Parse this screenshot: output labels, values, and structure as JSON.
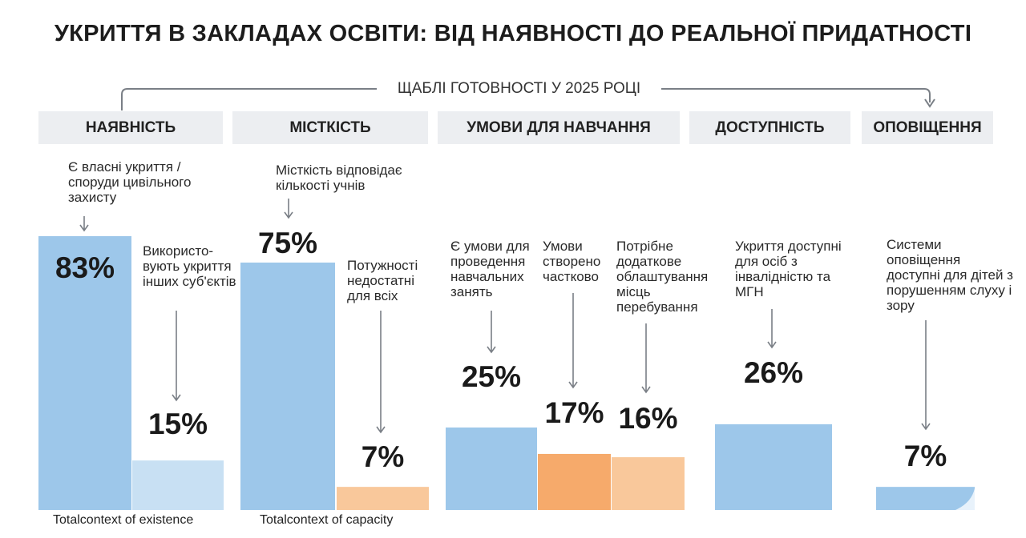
{
  "title": "УКРИТТЯ В ЗАКЛАДАХ ОСВІТИ: ВІД НАЯВНОСТІ ДО РЕАЛЬНОЇ ПРИДАТНОСТІ",
  "subtitle": "ЩАБЛІ ГОТОВНОСТІ У 2025 РОЦІ",
  "colors": {
    "blue": "#9dc7ea",
    "light_blue": "#c8e0f3",
    "orange": "#f6aa6b",
    "light_orange": "#f9c89b",
    "category_bg": "#eceef1",
    "arrow": "#7a7f86"
  },
  "categories": [
    "НАЯВНІСТЬ",
    "МІСТКІСТЬ",
    "УМОВИ ДЛЯ НАВЧАННЯ",
    "ДОСТУПНІСТЬ",
    "ОПОВІЩЕННЯ"
  ],
  "footnotes": [
    "Totalcontext of existence",
    "Totalcontext of capacity"
  ],
  "chart_data": {
    "type": "bar",
    "title": "УКРИТТЯ В ЗАКЛАДАХ ОСВІТИ: ВІД НАЯВНОСТІ ДО РЕАЛЬНОЇ ПРИДАТНОСТІ",
    "subtitle": "ЩАБЛІ ГОТОВНОСТІ У 2025 РОЦІ",
    "unit": "%",
    "bars": [
      {
        "group": "НАЯВНІСТЬ",
        "label": "Є власні укриття / споруди цивільного захисту",
        "value": 83,
        "value_label": "83%",
        "color": "blue"
      },
      {
        "group": "НАЯВНІСТЬ",
        "label": "Використо-вують укриття інших суб'єктів",
        "value": 15,
        "value_label": "15%",
        "color": "light_blue"
      },
      {
        "group": "МІСТКІСТЬ",
        "label": "Місткість відповідає кількості учнів",
        "value": 75,
        "value_label": "75%",
        "color": "blue"
      },
      {
        "group": "МІСТКІСТЬ",
        "label": "Потужності недостатні для всіх",
        "value": 7,
        "value_label": "7%",
        "color": "light_orange"
      },
      {
        "group": "УМОВИ ДЛЯ НАВЧАННЯ",
        "label": "Є умови для проведення навчальних занять",
        "value": 25,
        "value_label": "25%",
        "color": "blue"
      },
      {
        "group": "УМОВИ ДЛЯ НАВЧАННЯ",
        "label": "Умови створено частково",
        "value": 17,
        "value_label": "17%",
        "color": "orange"
      },
      {
        "group": "УМОВИ ДЛЯ НАВЧАННЯ",
        "label": "Потрібне додаткове облаштування місць перебування",
        "value": 16,
        "value_label": "16%",
        "color": "light_orange"
      },
      {
        "group": "ДОСТУПНІСТЬ",
        "label": "Укриття доступні для осіб з інвалідністю та МГН",
        "value": 26,
        "value_label": "26%",
        "color": "blue"
      },
      {
        "group": "ОПОВІЩЕННЯ",
        "label": "Системи оповіщення доступні для дітей з порушенням слуху і зору",
        "value": 7,
        "value_label": "7%",
        "color": "blue"
      }
    ]
  }
}
